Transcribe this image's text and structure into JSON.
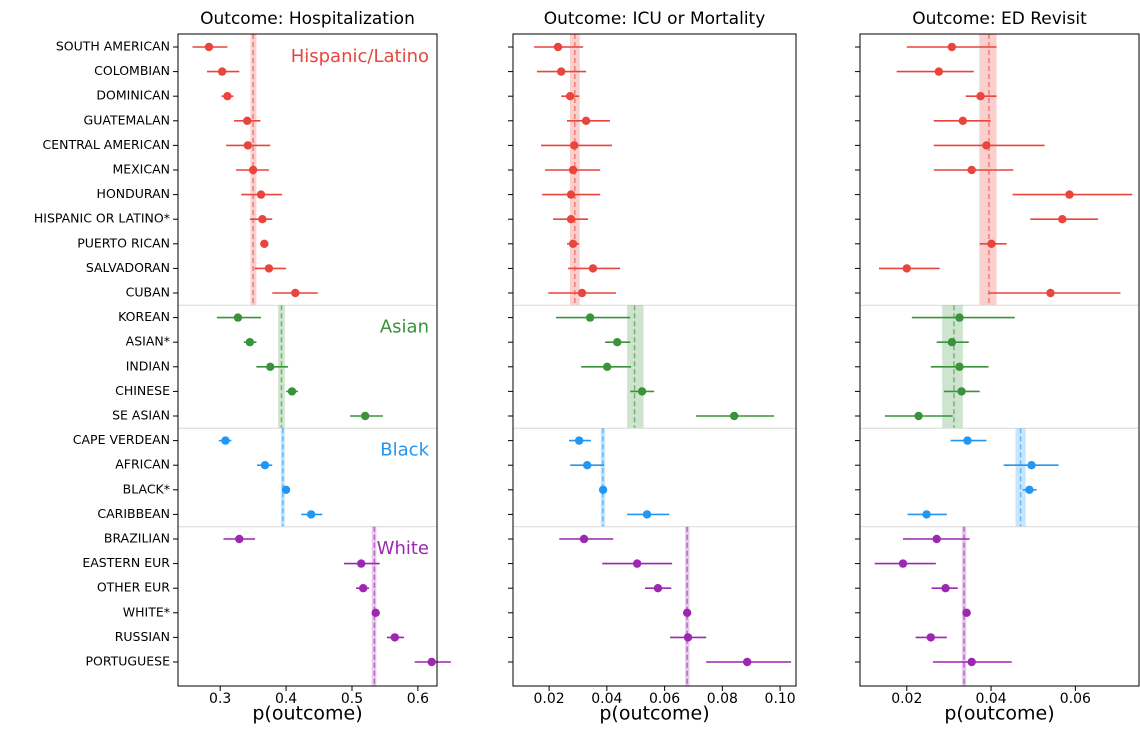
{
  "chart_data": [
    {
      "type": "forest",
      "title": "Outcome: Hospitalization",
      "xlabel": "p(outcome)",
      "xlim": [
        0.236,
        0.629
      ],
      "xticks": [
        0.3,
        0.4,
        0.5,
        0.6
      ],
      "series": [
        {
          "name": "Hispanic/Latino",
          "color": "#e8453c",
          "categories": [
            "SOUTH AMERICAN",
            "COLOMBIAN",
            "DOMINICAN",
            "GUATEMALAN",
            "CENTRAL AMERICAN",
            "MEXICAN",
            "HONDURAN",
            "HISPANIC OR LATINO*",
            "PUERTO RICAN",
            "SALVADORAN",
            "CUBAN"
          ],
          "values": [
            0.283,
            0.303,
            0.311,
            0.341,
            0.342,
            0.35,
            0.362,
            0.364,
            0.367,
            0.374,
            0.414
          ],
          "lower": [
            0.258,
            0.28,
            0.302,
            0.321,
            0.309,
            0.324,
            0.332,
            0.345,
            0.361,
            0.352,
            0.379
          ],
          "upper": [
            0.311,
            0.329,
            0.32,
            0.361,
            0.376,
            0.374,
            0.394,
            0.379,
            0.373,
            0.4,
            0.448
          ],
          "ref": 0.35,
          "ref_lower": 0.346,
          "ref_upper": 0.355
        },
        {
          "name": "Asian",
          "color": "#3a923a",
          "categories": [
            "KOREAN",
            "ASIAN*",
            "INDIAN",
            "CHINESE",
            "SE ASIAN"
          ],
          "values": [
            0.327,
            0.345,
            0.376,
            0.409,
            0.52
          ],
          "lower": [
            0.295,
            0.336,
            0.355,
            0.4,
            0.497
          ],
          "upper": [
            0.362,
            0.355,
            0.403,
            0.418,
            0.547
          ],
          "ref": 0.393,
          "ref_lower": 0.388,
          "ref_upper": 0.398
        },
        {
          "name": "Black",
          "color": "#2196f3",
          "categories": [
            "CAPE VERDEAN",
            "AFRICAN",
            "BLACK*",
            "CARIBBEAN"
          ],
          "values": [
            0.308,
            0.368,
            0.4,
            0.438
          ],
          "lower": [
            0.298,
            0.356,
            0.395,
            0.423
          ],
          "upper": [
            0.317,
            0.379,
            0.405,
            0.455
          ],
          "ref": 0.395,
          "ref_lower": 0.392,
          "ref_upper": 0.398
        },
        {
          "name": "White",
          "color": "#9c27b0",
          "categories": [
            "BRAZILIAN",
            "EASTERN EUR",
            "OTHER EUR",
            "WHITE*",
            "RUSSIAN",
            "PORTUGUESE"
          ],
          "values": [
            0.329,
            0.514,
            0.517,
            0.536,
            0.565,
            0.621
          ],
          "lower": [
            0.305,
            0.488,
            0.506,
            0.533,
            0.553,
            0.595
          ],
          "upper": [
            0.353,
            0.542,
            0.526,
            0.539,
            0.579,
            0.65
          ],
          "ref": 0.534,
          "ref_lower": 0.53,
          "ref_upper": 0.537
        }
      ]
    },
    {
      "type": "forest",
      "title": "Outcome: ICU or Mortality",
      "xlabel": "p(outcome)",
      "xlim": [
        0.0075,
        0.1055
      ],
      "xticks": [
        0.02,
        0.04,
        0.06,
        0.08,
        {
          "value": 0.1,
          "label": "0.10"
        }
      ],
      "series": [
        {
          "color": "#e8453c",
          "values": [
            0.0231,
            0.0242,
            0.0273,
            0.0328,
            0.0287,
            0.0283,
            0.0276,
            0.0276,
            0.0283,
            0.0352,
            0.0314
          ],
          "lower": [
            0.0148,
            0.0158,
            0.0242,
            0.0262,
            0.0172,
            0.0186,
            0.0176,
            0.0214,
            0.0262,
            0.0266,
            0.0197
          ],
          "upper": [
            0.0318,
            0.0328,
            0.0304,
            0.0411,
            0.0418,
            0.0377,
            0.0377,
            0.0335,
            0.0304,
            0.0446,
            0.0432
          ],
          "ref": 0.0289,
          "ref_lower": 0.0272,
          "ref_upper": 0.0306
        },
        {
          "color": "#3a923a",
          "values": [
            0.0342,
            0.0436,
            0.0401,
            0.0522,
            0.0841
          ],
          "lower": [
            0.0224,
            0.0394,
            0.0311,
            0.0481,
            0.0709
          ],
          "upper": [
            0.0481,
            0.0481,
            0.0484,
            0.0564,
            0.0979
          ],
          "ref": 0.0496,
          "ref_lower": 0.047,
          "ref_upper": 0.0527
        },
        {
          "color": "#2196f3",
          "values": [
            0.0304,
            0.0332,
            0.0387,
            0.0539
          ],
          "lower": [
            0.0269,
            0.0273,
            0.038,
            0.047
          ],
          "upper": [
            0.0345,
            0.039,
            0.0394,
            0.0616
          ],
          "ref": 0.0386,
          "ref_lower": 0.0379,
          "ref_upper": 0.0394
        },
        {
          "color": "#9c27b0",
          "values": [
            0.0321,
            0.0505,
            0.0577,
            0.0678,
            0.0681,
            0.0886
          ],
          "lower": [
            0.0235,
            0.0384,
            0.0532,
            0.0671,
            0.0619,
            0.0744
          ],
          "upper": [
            0.0422,
            0.0626,
            0.0623,
            0.0685,
            0.0744,
            0.1038
          ],
          "ref": 0.0678,
          "ref_lower": 0.0671,
          "ref_upper": 0.0686
        }
      ]
    },
    {
      "type": "forest",
      "title": "Outcome: ED Revisit",
      "xlabel": "p(outcome)",
      "xlim": [
        0.0089,
        0.0751
      ],
      "xticks": [
        0.02,
        0.04,
        0.06
      ],
      "series": [
        {
          "color": "#e8453c",
          "values": [
            0.0307,
            0.0276,
            0.0375,
            0.0333,
            0.0389,
            0.0354,
            0.0586,
            0.0569,
            0.0401,
            0.02,
            0.0541
          ],
          "lower": [
            0.02,
            0.0176,
            0.034,
            0.0264,
            0.0264,
            0.0264,
            0.0451,
            0.0493,
            0.0373,
            0.0134,
            0.0394
          ],
          "upper": [
            0.0413,
            0.0359,
            0.0413,
            0.0399,
            0.0527,
            0.0453,
            0.0735,
            0.0654,
            0.0437,
            0.0278,
            0.0707
          ],
          "ref": 0.0395,
          "ref_lower": 0.0372,
          "ref_upper": 0.0413
        },
        {
          "color": "#3a923a",
          "values": [
            0.0325,
            0.0307,
            0.0325,
            0.033,
            0.0228
          ],
          "lower": [
            0.0212,
            0.0271,
            0.0257,
            0.0288,
            0.0148
          ],
          "upper": [
            0.0456,
            0.0347,
            0.0394,
            0.0373,
            0.0309
          ],
          "ref": 0.0312,
          "ref_lower": 0.0284,
          "ref_upper": 0.0333
        },
        {
          "color": "#2196f3",
          "values": [
            0.0344,
            0.0496,
            0.0491,
            0.0247
          ],
          "lower": [
            0.0304,
            0.043,
            0.0475,
            0.0202
          ],
          "upper": [
            0.0389,
            0.056,
            0.0508,
            0.0295
          ],
          "ref": 0.047,
          "ref_lower": 0.0458,
          "ref_upper": 0.0482
        },
        {
          "color": "#9c27b0",
          "values": [
            0.0271,
            0.0191,
            0.0292,
            0.0342,
            0.0257,
            0.0354
          ],
          "lower": [
            0.0191,
            0.0124,
            0.0259,
            0.0337,
            0.0221,
            0.0262
          ],
          "upper": [
            0.0349,
            0.0269,
            0.0321,
            0.0347,
            0.0295,
            0.0449
          ],
          "ref": 0.0336,
          "ref_lower": 0.0331,
          "ref_upper": 0.0341
        }
      ]
    }
  ]
}
